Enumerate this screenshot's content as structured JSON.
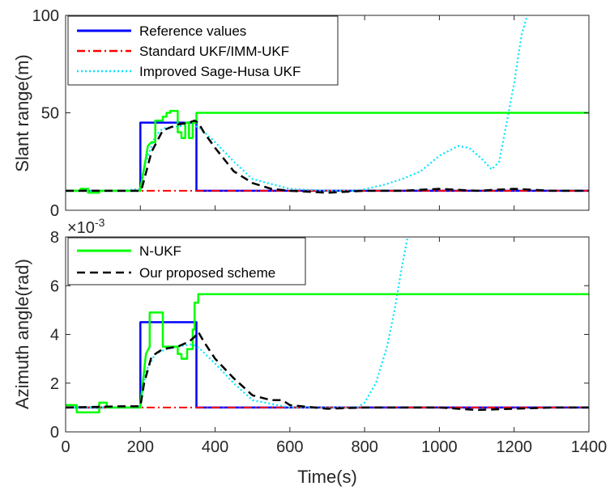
{
  "chart_data": [
    {
      "type": "line",
      "panel": "top",
      "ylabel": "Slant range(m)",
      "xlim": [
        0,
        1400
      ],
      "ylim": [
        0,
        100
      ],
      "yticks": [
        "0",
        "50",
        "100"
      ],
      "legend": {
        "placement": "top-left",
        "entries": [
          "Reference values",
          "Standard UKF/IMM-UKF",
          "Improved Sage-Husa UKF"
        ]
      },
      "series": [
        {
          "name": "Reference values",
          "color": "#0000ff",
          "style": "solid",
          "x": [
            0,
            200,
            200,
            350,
            350,
            1400
          ],
          "y": [
            10,
            10,
            45,
            45,
            10,
            10
          ]
        },
        {
          "name": "Standard UKF/IMM-UKF",
          "color": "#ff0000",
          "style": "dashdot",
          "x": [
            0,
            1400
          ],
          "y": [
            10,
            10
          ]
        },
        {
          "name": "Improved Sage-Husa UKF",
          "color": "#00e5ff",
          "style": "dotted",
          "x": [
            0,
            150,
            200,
            215,
            240,
            260,
            300,
            340,
            360,
            400,
            450,
            500,
            600,
            700,
            780,
            850,
            900,
            950,
            1000,
            1050,
            1080,
            1110,
            1140,
            1160,
            1180,
            1200,
            1220,
            1235
          ],
          "y": [
            10,
            10,
            11,
            25,
            38,
            42,
            43,
            44,
            42,
            35,
            25,
            16,
            11,
            10,
            10,
            13,
            16,
            20,
            28,
            33,
            32,
            27,
            21,
            25,
            45,
            65,
            90,
            100
          ]
        },
        {
          "name": "N-UKF",
          "color": "#00ff00",
          "style": "solid",
          "x": [
            0,
            40,
            40,
            60,
            60,
            90,
            90,
            100,
            100,
            200,
            200,
            215,
            220,
            230,
            240,
            240,
            260,
            260,
            270,
            270,
            280,
            280,
            300,
            300,
            310,
            310,
            320,
            320,
            330,
            330,
            340,
            340,
            350,
            350,
            1400
          ],
          "y": [
            10,
            10,
            11,
            11,
            9,
            9,
            10,
            10,
            10,
            10,
            11,
            27,
            33,
            35,
            35,
            46,
            46,
            48,
            48,
            50,
            50,
            51,
            51,
            40,
            40,
            37,
            37,
            45,
            45,
            37,
            37,
            45,
            45,
            50,
            50
          ]
        },
        {
          "name": "Our proposed scheme",
          "color": "#000000",
          "style": "dashed",
          "x": [
            0,
            150,
            200,
            205,
            230,
            260,
            300,
            330,
            345,
            355,
            370,
            400,
            450,
            500,
            550,
            600,
            700,
            800,
            900,
            1000,
            1100,
            1200,
            1300,
            1400
          ],
          "y": [
            10,
            10,
            10,
            12,
            30,
            41,
            44,
            45,
            46,
            45,
            40,
            32,
            20,
            14,
            11,
            10,
            9,
            10,
            10,
            11,
            10,
            11,
            10,
            10
          ]
        }
      ]
    },
    {
      "type": "line",
      "panel": "bottom",
      "ylabel": "Azimuth angle(rad)",
      "xlabel": "Time(s)",
      "exponent": "×10",
      "exponent_power": "-3",
      "xlim": [
        0,
        1400
      ],
      "ylim": [
        0,
        8
      ],
      "xticks": [
        "0",
        "200",
        "400",
        "600",
        "800",
        "1000",
        "1200",
        "1400"
      ],
      "yticks": [
        "0",
        "2",
        "4",
        "6",
        "8"
      ],
      "legend": {
        "placement": "top-left",
        "entries": [
          "N-UKF",
          "Our proposed scheme"
        ]
      },
      "series": [
        {
          "name": "Reference values",
          "color": "#0000ff",
          "style": "solid",
          "x": [
            0,
            200,
            200,
            350,
            350,
            1400
          ],
          "y": [
            1,
            1,
            4.5,
            4.5,
            1,
            1
          ]
        },
        {
          "name": "Standard UKF/IMM-UKF",
          "color": "#ff0000",
          "style": "dashdot",
          "x": [
            0,
            1400
          ],
          "y": [
            1,
            1
          ]
        },
        {
          "name": "Improved Sage-Husa UKF",
          "color": "#00e5ff",
          "style": "dotted",
          "x": [
            0,
            150,
            200,
            215,
            240,
            270,
            300,
            340,
            360,
            400,
            450,
            500,
            600,
            700,
            780,
            800,
            830,
            860,
            880,
            900,
            915
          ],
          "y": [
            1,
            1,
            1.05,
            2.5,
            3.2,
            3.4,
            3.5,
            3.6,
            3.4,
            2.8,
            2.0,
            1.3,
            1.0,
            1.0,
            1.0,
            1.2,
            2.0,
            3.5,
            5.0,
            6.8,
            8.0
          ]
        },
        {
          "name": "N-UKF",
          "color": "#00ff00",
          "style": "solid",
          "x": [
            0,
            30,
            30,
            90,
            90,
            110,
            110,
            200,
            200,
            215,
            225,
            225,
            260,
            260,
            300,
            300,
            310,
            310,
            325,
            325,
            340,
            340,
            345,
            345,
            355,
            355,
            1400
          ],
          "y": [
            1.1,
            1.1,
            0.8,
            0.8,
            1.2,
            1.2,
            1.0,
            1.0,
            1.1,
            3.2,
            3.5,
            4.9,
            4.9,
            3.5,
            3.5,
            3.2,
            3.2,
            3.0,
            3.0,
            3.4,
            3.4,
            4.2,
            4.2,
            5.3,
            5.3,
            5.65,
            5.65
          ]
        },
        {
          "name": "Our proposed scheme",
          "color": "#000000",
          "style": "dashed",
          "x": [
            0,
            150,
            200,
            210,
            230,
            260,
            300,
            330,
            345,
            355,
            370,
            400,
            450,
            500,
            550,
            580,
            600,
            700,
            800,
            900,
            1000,
            1100,
            1200,
            1300,
            1400
          ],
          "y": [
            1,
            1.05,
            1.05,
            2.0,
            3.1,
            3.4,
            3.5,
            3.7,
            3.9,
            4.1,
            3.7,
            3.0,
            2.2,
            1.5,
            1.3,
            1.3,
            1.1,
            0.95,
            1.0,
            1.0,
            1.0,
            0.9,
            0.95,
            1.0,
            1.0
          ]
        }
      ]
    }
  ]
}
